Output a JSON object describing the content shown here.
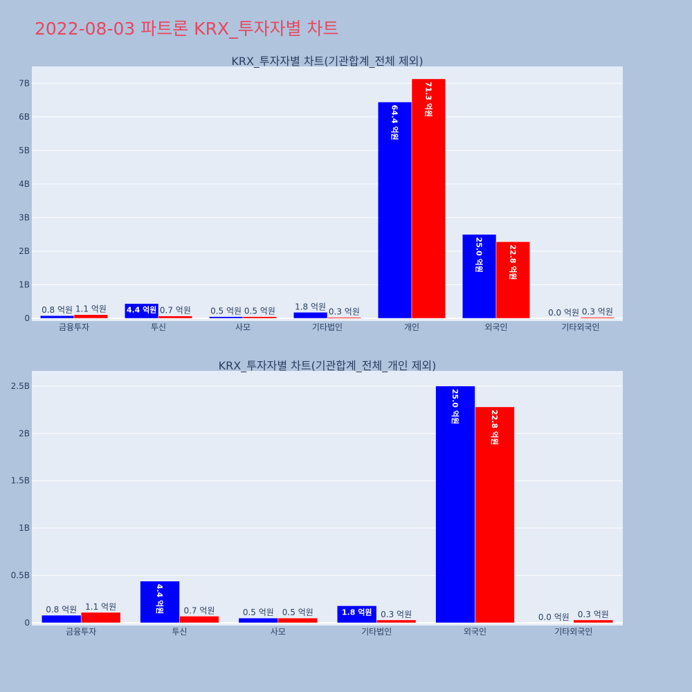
{
  "page": {
    "title": "2022-08-03 파트론 KRX_투자자별 차트",
    "background": "#b0c4de",
    "title_color": "#e8475f",
    "plot_background": "#e5ecf6",
    "series_colors": [
      "#0000ff",
      "#ff0000"
    ]
  },
  "chart_data": [
    {
      "type": "bar",
      "title": "KRX_투자자별 차트(기관합계_전체 제외)",
      "categories": [
        "금융투자",
        "투신",
        "사모",
        "기타법인",
        "개인",
        "외국인",
        "기타외국인"
      ],
      "series": [
        {
          "values": [
            80000000,
            440000000,
            50000000,
            180000000,
            6440000000,
            2500000000,
            0
          ],
          "labels": [
            "0.8 억원",
            "4.4 억원",
            "0.5 억원",
            "1.8 억원",
            "64.4 억원",
            "25.0 억원",
            "0.0 억원"
          ],
          "color": "#0000ff"
        },
        {
          "values": [
            110000000,
            70000000,
            50000000,
            30000000,
            7130000000,
            2280000000,
            30000000
          ],
          "labels": [
            "1.1 억원",
            "0.7 억원",
            "0.5 억원",
            "0.3 억원",
            "71.3 억원",
            "22.8 억원",
            "0.3 억원"
          ],
          "color": "#ff0000"
        }
      ],
      "ylim": [
        0,
        7500000000
      ],
      "yticks": [
        0,
        1000000000,
        2000000000,
        3000000000,
        4000000000,
        5000000000,
        6000000000,
        7000000000
      ],
      "ytick_labels": [
        "0",
        "1B",
        "2B",
        "3B",
        "4B",
        "5B",
        "6B",
        "7B"
      ],
      "grid": true
    },
    {
      "type": "bar",
      "title": "KRX_투자자별 차트(기관합계_전체_개인 제외)",
      "categories": [
        "금융투자",
        "투신",
        "사모",
        "기타법인",
        "외국인",
        "기타외국인"
      ],
      "series": [
        {
          "values": [
            80000000,
            440000000,
            50000000,
            180000000,
            2500000000,
            0
          ],
          "labels": [
            "0.8 억원",
            "4.4 억원",
            "0.5 억원",
            "1.8 억원",
            "25.0 억원",
            "0.0 억원"
          ],
          "color": "#0000ff"
        },
        {
          "values": [
            110000000,
            70000000,
            50000000,
            30000000,
            2280000000,
            30000000
          ],
          "labels": [
            "1.1 억원",
            "0.7 억원",
            "0.5 억원",
            "0.3 억원",
            "22.8 억원",
            "0.3 억원"
          ],
          "color": "#ff0000"
        }
      ],
      "ylim": [
        0,
        2660000000
      ],
      "yticks": [
        0,
        500000000,
        1000000000,
        1500000000,
        2000000000,
        2500000000
      ],
      "ytick_labels": [
        "0",
        "0.5B",
        "1B",
        "1.5B",
        "2B",
        "2.5B"
      ],
      "grid": true
    }
  ]
}
